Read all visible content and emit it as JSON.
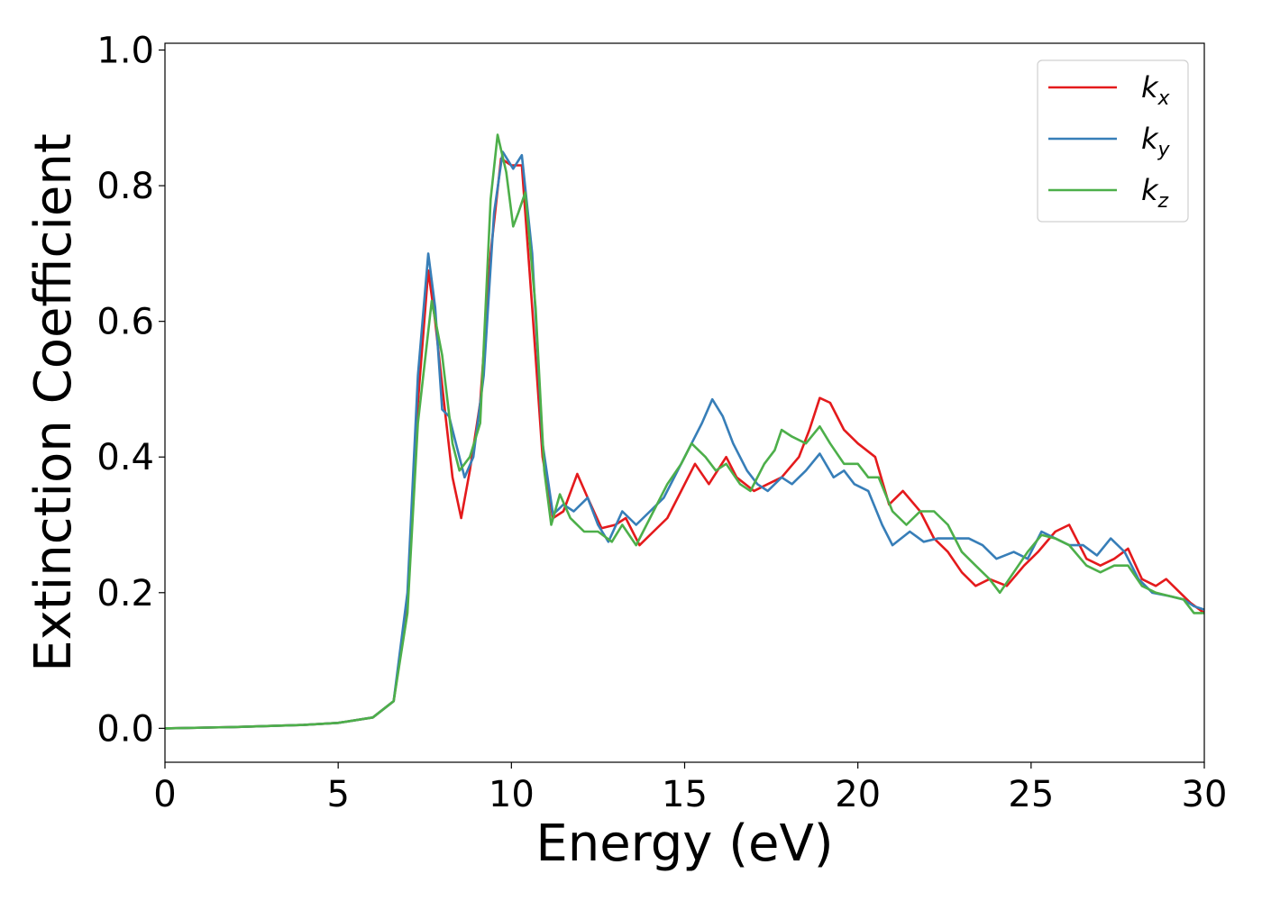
{
  "chart_data": {
    "type": "line",
    "title": "",
    "xlabel": "Energy (eV)",
    "ylabel": "Extinction Coefficient",
    "xlim": [
      0,
      30
    ],
    "ylim": [
      -0.05,
      1.01
    ],
    "xticks": [
      "0",
      "5",
      "10",
      "15",
      "20",
      "25",
      "30"
    ],
    "yticks": [
      "0.0",
      "0.2",
      "0.4",
      "0.6",
      "0.8",
      "1.0"
    ],
    "grid": false,
    "legend_position": "top-right",
    "series": [
      {
        "name": "k_x",
        "label_main": "k",
        "label_sub": "x",
        "color": "#e41a1c",
        "points": [
          [
            0,
            0.0
          ],
          [
            2,
            0.002
          ],
          [
            4,
            0.005
          ],
          [
            5,
            0.008
          ],
          [
            6,
            0.016
          ],
          [
            6.6,
            0.04
          ],
          [
            7.0,
            0.18
          ],
          [
            7.3,
            0.48
          ],
          [
            7.6,
            0.675
          ],
          [
            7.8,
            0.6
          ],
          [
            8.1,
            0.46
          ],
          [
            8.3,
            0.37
          ],
          [
            8.55,
            0.31
          ],
          [
            8.8,
            0.38
          ],
          [
            9.1,
            0.48
          ],
          [
            9.4,
            0.7
          ],
          [
            9.7,
            0.84
          ],
          [
            10.0,
            0.83
          ],
          [
            10.3,
            0.83
          ],
          [
            10.6,
            0.62
          ],
          [
            10.9,
            0.4
          ],
          [
            11.2,
            0.31
          ],
          [
            11.5,
            0.32
          ],
          [
            11.9,
            0.375
          ],
          [
            12.2,
            0.34
          ],
          [
            12.6,
            0.295
          ],
          [
            13.0,
            0.3
          ],
          [
            13.3,
            0.31
          ],
          [
            13.7,
            0.27
          ],
          [
            14.1,
            0.29
          ],
          [
            14.5,
            0.31
          ],
          [
            14.9,
            0.35
          ],
          [
            15.3,
            0.39
          ],
          [
            15.7,
            0.36
          ],
          [
            16.2,
            0.4
          ],
          [
            16.5,
            0.37
          ],
          [
            17.0,
            0.35
          ],
          [
            17.4,
            0.36
          ],
          [
            17.8,
            0.37
          ],
          [
            18.3,
            0.4
          ],
          [
            18.6,
            0.44
          ],
          [
            18.9,
            0.487
          ],
          [
            19.2,
            0.48
          ],
          [
            19.6,
            0.44
          ],
          [
            20.0,
            0.42
          ],
          [
            20.5,
            0.4
          ],
          [
            20.9,
            0.33
          ],
          [
            21.3,
            0.35
          ],
          [
            21.8,
            0.32
          ],
          [
            22.2,
            0.28
          ],
          [
            22.6,
            0.26
          ],
          [
            23.0,
            0.23
          ],
          [
            23.4,
            0.21
          ],
          [
            23.8,
            0.22
          ],
          [
            24.3,
            0.21
          ],
          [
            24.8,
            0.24
          ],
          [
            25.2,
            0.26
          ],
          [
            25.7,
            0.29
          ],
          [
            26.1,
            0.3
          ],
          [
            26.6,
            0.25
          ],
          [
            27.0,
            0.24
          ],
          [
            27.4,
            0.25
          ],
          [
            27.8,
            0.265
          ],
          [
            28.2,
            0.22
          ],
          [
            28.6,
            0.21
          ],
          [
            28.9,
            0.22
          ],
          [
            29.3,
            0.2
          ],
          [
            29.6,
            0.185
          ],
          [
            30.0,
            0.17
          ]
        ]
      },
      {
        "name": "k_y",
        "label_main": "k",
        "label_sub": "y",
        "color": "#377eb8",
        "points": [
          [
            0,
            0.0
          ],
          [
            2,
            0.002
          ],
          [
            4,
            0.005
          ],
          [
            5,
            0.008
          ],
          [
            6,
            0.016
          ],
          [
            6.6,
            0.04
          ],
          [
            7.0,
            0.2
          ],
          [
            7.3,
            0.52
          ],
          [
            7.6,
            0.7
          ],
          [
            7.8,
            0.62
          ],
          [
            8.0,
            0.47
          ],
          [
            8.2,
            0.46
          ],
          [
            8.4,
            0.42
          ],
          [
            8.65,
            0.37
          ],
          [
            8.9,
            0.4
          ],
          [
            9.2,
            0.52
          ],
          [
            9.5,
            0.76
          ],
          [
            9.75,
            0.85
          ],
          [
            10.05,
            0.825
          ],
          [
            10.3,
            0.845
          ],
          [
            10.6,
            0.7
          ],
          [
            10.9,
            0.42
          ],
          [
            11.2,
            0.315
          ],
          [
            11.5,
            0.33
          ],
          [
            11.8,
            0.32
          ],
          [
            12.2,
            0.34
          ],
          [
            12.5,
            0.3
          ],
          [
            12.8,
            0.275
          ],
          [
            13.2,
            0.32
          ],
          [
            13.6,
            0.3
          ],
          [
            14.0,
            0.32
          ],
          [
            14.4,
            0.34
          ],
          [
            14.8,
            0.38
          ],
          [
            15.2,
            0.42
          ],
          [
            15.5,
            0.45
          ],
          [
            15.8,
            0.485
          ],
          [
            16.1,
            0.46
          ],
          [
            16.4,
            0.42
          ],
          [
            16.8,
            0.38
          ],
          [
            17.1,
            0.36
          ],
          [
            17.4,
            0.35
          ],
          [
            17.8,
            0.37
          ],
          [
            18.1,
            0.36
          ],
          [
            18.5,
            0.38
          ],
          [
            18.9,
            0.405
          ],
          [
            19.3,
            0.37
          ],
          [
            19.6,
            0.38
          ],
          [
            19.9,
            0.36
          ],
          [
            20.3,
            0.35
          ],
          [
            20.7,
            0.3
          ],
          [
            21.0,
            0.27
          ],
          [
            21.5,
            0.29
          ],
          [
            21.9,
            0.275
          ],
          [
            22.3,
            0.28
          ],
          [
            22.8,
            0.28
          ],
          [
            23.2,
            0.28
          ],
          [
            23.6,
            0.27
          ],
          [
            24.0,
            0.25
          ],
          [
            24.5,
            0.26
          ],
          [
            24.9,
            0.25
          ],
          [
            25.3,
            0.29
          ],
          [
            25.7,
            0.28
          ],
          [
            26.1,
            0.27
          ],
          [
            26.5,
            0.27
          ],
          [
            26.9,
            0.255
          ],
          [
            27.3,
            0.28
          ],
          [
            27.7,
            0.26
          ],
          [
            28.1,
            0.22
          ],
          [
            28.5,
            0.2
          ],
          [
            29.0,
            0.195
          ],
          [
            29.4,
            0.19
          ],
          [
            29.7,
            0.18
          ],
          [
            30.0,
            0.175
          ]
        ]
      },
      {
        "name": "k_z",
        "label_main": "k",
        "label_sub": "z",
        "color": "#4daf4a",
        "points": [
          [
            0,
            0.0
          ],
          [
            2,
            0.002
          ],
          [
            4,
            0.005
          ],
          [
            5,
            0.008
          ],
          [
            6,
            0.016
          ],
          [
            6.6,
            0.04
          ],
          [
            7.0,
            0.17
          ],
          [
            7.3,
            0.45
          ],
          [
            7.7,
            0.63
          ],
          [
            8.0,
            0.55
          ],
          [
            8.3,
            0.42
          ],
          [
            8.5,
            0.38
          ],
          [
            8.8,
            0.4
          ],
          [
            9.1,
            0.45
          ],
          [
            9.4,
            0.78
          ],
          [
            9.6,
            0.875
          ],
          [
            9.85,
            0.82
          ],
          [
            10.05,
            0.74
          ],
          [
            10.2,
            0.76
          ],
          [
            10.4,
            0.79
          ],
          [
            10.7,
            0.62
          ],
          [
            10.95,
            0.38
          ],
          [
            11.15,
            0.3
          ],
          [
            11.4,
            0.345
          ],
          [
            11.7,
            0.31
          ],
          [
            12.1,
            0.29
          ],
          [
            12.5,
            0.29
          ],
          [
            12.9,
            0.275
          ],
          [
            13.2,
            0.3
          ],
          [
            13.6,
            0.27
          ],
          [
            14.0,
            0.31
          ],
          [
            14.5,
            0.36
          ],
          [
            14.9,
            0.39
          ],
          [
            15.2,
            0.42
          ],
          [
            15.6,
            0.4
          ],
          [
            15.9,
            0.38
          ],
          [
            16.2,
            0.39
          ],
          [
            16.6,
            0.36
          ],
          [
            16.9,
            0.35
          ],
          [
            17.3,
            0.39
          ],
          [
            17.6,
            0.41
          ],
          [
            17.8,
            0.44
          ],
          [
            18.1,
            0.43
          ],
          [
            18.5,
            0.42
          ],
          [
            18.9,
            0.445
          ],
          [
            19.2,
            0.42
          ],
          [
            19.6,
            0.39
          ],
          [
            20.0,
            0.39
          ],
          [
            20.3,
            0.37
          ],
          [
            20.6,
            0.37
          ],
          [
            21.0,
            0.32
          ],
          [
            21.4,
            0.3
          ],
          [
            21.8,
            0.32
          ],
          [
            22.2,
            0.32
          ],
          [
            22.6,
            0.3
          ],
          [
            23.0,
            0.26
          ],
          [
            23.4,
            0.24
          ],
          [
            23.8,
            0.22
          ],
          [
            24.1,
            0.2
          ],
          [
            24.5,
            0.23
          ],
          [
            24.9,
            0.26
          ],
          [
            25.3,
            0.285
          ],
          [
            25.7,
            0.28
          ],
          [
            26.1,
            0.27
          ],
          [
            26.6,
            0.24
          ],
          [
            27.0,
            0.23
          ],
          [
            27.4,
            0.24
          ],
          [
            27.8,
            0.24
          ],
          [
            28.2,
            0.21
          ],
          [
            28.6,
            0.2
          ],
          [
            29.0,
            0.195
          ],
          [
            29.4,
            0.19
          ],
          [
            29.7,
            0.17
          ],
          [
            30.0,
            0.17
          ]
        ]
      }
    ]
  }
}
